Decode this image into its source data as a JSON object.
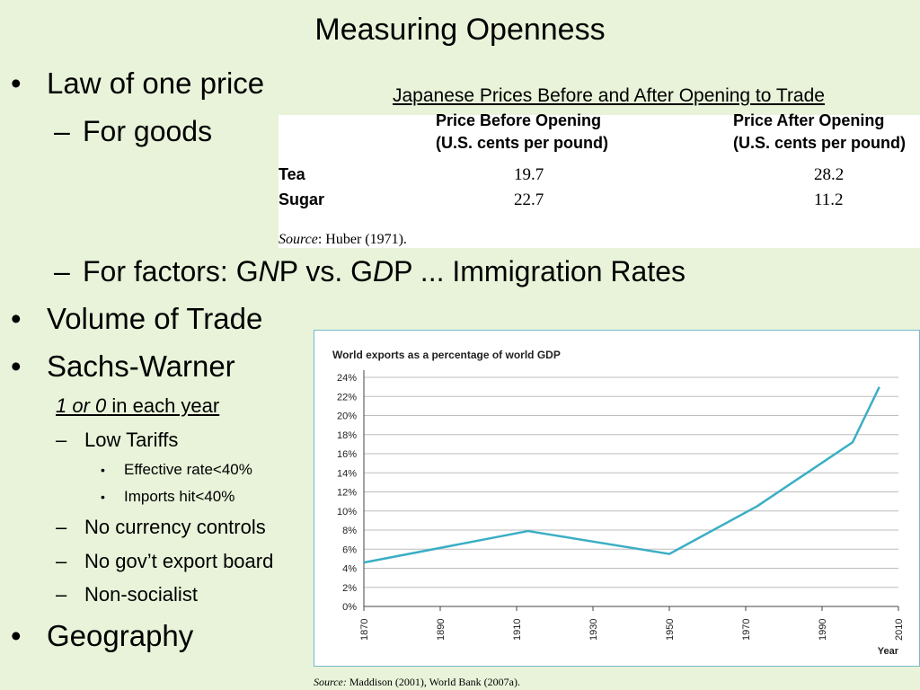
{
  "slide": {
    "title": "Measuring Openness",
    "law_of_one_price": "Law of one price",
    "for_goods": "For goods",
    "for_factors_parts": [
      "For factors: G",
      "N",
      "P vs. G",
      "D",
      "P ... Immigration Rates"
    ],
    "volume_of_trade": "Volume of Trade",
    "sachs_warner": "Sachs-Warner",
    "sw_note_italic": "1 or 0",
    "sw_note_rest": " in each year",
    "low_tariffs": "Low Tariffs",
    "effective_rate": "Effective rate<40%",
    "imports_hit": "Imports hit<40%",
    "no_currency": "No currency controls",
    "no_export_board": "No gov’t export board",
    "non_socialist": "Non-socialist",
    "geography": "Geography"
  },
  "price_table": {
    "caption": "Japanese Prices Before and After Opening to Trade",
    "col1_line1": "Price Before Opening",
    "col1_line2": "(U.S. cents per pound)",
    "col2_line1": "Price After Opening",
    "col2_line2": "(U.S. cents per pound)",
    "rows": [
      {
        "label": "Tea",
        "before": "19.7",
        "after": "28.2"
      },
      {
        "label": "Sugar",
        "before": "22.7",
        "after": "11.2"
      }
    ],
    "source_italic": "Source",
    "source_rest": ": Huber (1971)."
  },
  "chart_data": {
    "type": "line",
    "title": "World exports as a percentage of world GDP",
    "xlabel": "Year",
    "ylabel": "",
    "x_ticks": [
      1870,
      1890,
      1910,
      1930,
      1950,
      1970,
      1990,
      2010
    ],
    "y_ticks": [
      "0%",
      "2%",
      "4%",
      "6%",
      "8%",
      "10%",
      "12%",
      "14%",
      "16%",
      "18%",
      "20%",
      "22%",
      "24%"
    ],
    "xlim": [
      1870,
      2010
    ],
    "ylim": [
      0,
      24
    ],
    "grid": true,
    "line_color": "#3aaec4",
    "series": [
      {
        "x": [
          1870,
          1913,
          1950,
          1973,
          1998,
          2005
        ],
        "y": [
          4.6,
          7.9,
          5.5,
          10.5,
          17.2,
          23.0
        ]
      }
    ],
    "source_italic": "Source:",
    "source_rest": " Maddison (2001), World Bank (2007a)."
  }
}
